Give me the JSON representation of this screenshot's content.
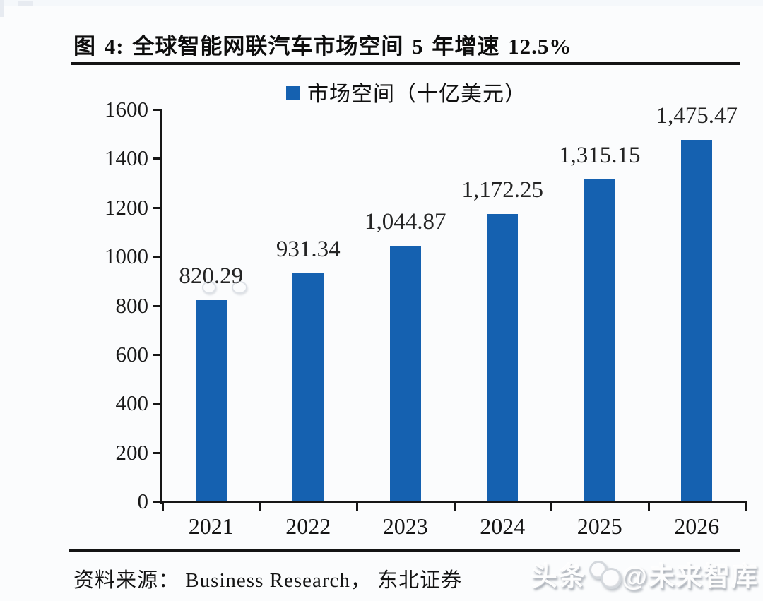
{
  "figure": {
    "title": "图 4: 全球智能网联汽车市场空间 5 年增速 12.5%",
    "source": "资料来源： Business Research， 东北证券",
    "watermark_prefix": "头条",
    "watermark_suffix": "@未来智库"
  },
  "chart_data": {
    "type": "bar",
    "title": "图 4: 全球智能网联汽车市场空间 5 年增速 12.5%",
    "legend": "市场空间（十亿美元）",
    "legend_position": "top-center",
    "categories": [
      "2021",
      "2022",
      "2023",
      "2024",
      "2025",
      "2026"
    ],
    "values": [
      820.29,
      931.34,
      1044.87,
      1172.25,
      1315.15,
      1475.47
    ],
    "value_labels": [
      "820.29",
      "931.34",
      "1,044.87",
      "1,172.25",
      "1,315.15",
      "1,475.47"
    ],
    "ylabel": "",
    "xlabel": "",
    "ylim": [
      0,
      1600
    ],
    "yticks": [
      0,
      200,
      400,
      600,
      800,
      1000,
      1200,
      1400,
      1600
    ],
    "grid": false,
    "bar_color": "#1561B0"
  }
}
